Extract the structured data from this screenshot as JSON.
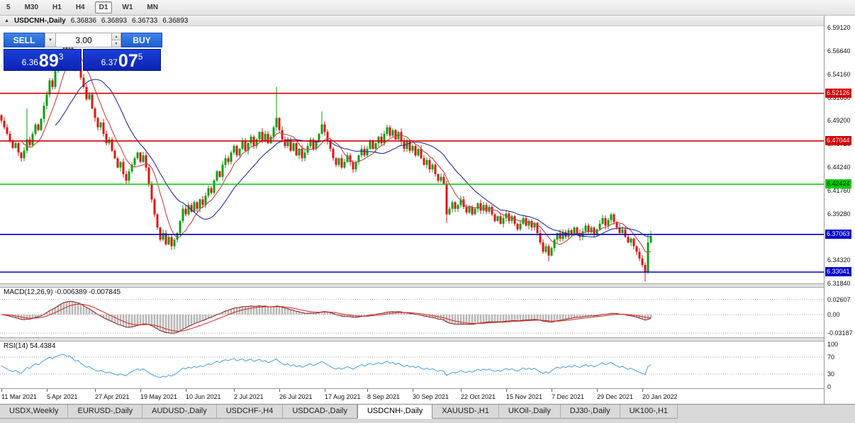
{
  "toolbar": {
    "timeframes": [
      {
        "label": "5",
        "active": false
      },
      {
        "label": "M30",
        "active": false
      },
      {
        "label": "H1",
        "active": false
      },
      {
        "label": "H4",
        "active": false
      },
      {
        "label": "D1",
        "active": true
      },
      {
        "label": "W1",
        "active": false
      },
      {
        "label": "MN",
        "active": false
      }
    ]
  },
  "chart_header": {
    "icon": "▲",
    "symbol": "USDCNH-,Daily",
    "open": "6.36836",
    "high": "6.36893",
    "low": "6.36733",
    "close": "6.36893"
  },
  "trade_panel": {
    "sell_label": "SELL",
    "buy_label": "BUY",
    "volume": "3.00",
    "dropdown_icon": "▼",
    "up_icon": "▲",
    "down_icon": "▼",
    "sell_price": {
      "small": "6.36",
      "big": "89",
      "sup": "3"
    },
    "buy_price": {
      "small": "6.37",
      "big": "07",
      "sup": "5"
    }
  },
  "price_axis": {
    "ticks": [
      "6.59120",
      "6.56640",
      "6.54160",
      "6.51680",
      "6.49200",
      "6.46720",
      "6.44240",
      "6.41760",
      "6.39280",
      "6.36800",
      "6.34320",
      "6.31840"
    ]
  },
  "hlines": [
    {
      "value": "6.52126",
      "price": 6.52126,
      "bg": "#d40000",
      "fg": "#ffffff"
    },
    {
      "value": "6.47044",
      "price": 6.47044,
      "bg": "#d40000",
      "fg": "#ffffff"
    },
    {
      "value": "6.42424",
      "price": 6.42424,
      "bg": "#00cc00",
      "fg": "#002200"
    },
    {
      "value": "6.37063",
      "price": 6.37063,
      "bg": "#0000cc",
      "fg": "#ffffff"
    },
    {
      "value": "6.33041",
      "price": 6.33041,
      "bg": "#0000cc",
      "fg": "#ffffff"
    }
  ],
  "macd_panel": {
    "label": "MACD(12,26,9) -0.006389 -0.007845",
    "axis": [
      {
        "text": "0.02607",
        "v": 0.02607
      },
      {
        "text": "0.00",
        "v": 0
      },
      {
        "text": "-0.03187",
        "v": -0.03187
      }
    ]
  },
  "rsi_panel": {
    "label": "RSI(14) 54.4384",
    "axis": [
      {
        "text": "100",
        "v": 100
      },
      {
        "text": "70",
        "v": 70
      },
      {
        "text": "30",
        "v": 30
      },
      {
        "text": "0",
        "v": 0
      }
    ]
  },
  "tabs": [
    {
      "label": "USDX,Weekly",
      "active": false
    },
    {
      "label": "EURUSD-,Daily",
      "active": false
    },
    {
      "label": "AUDUSD-,Daily",
      "active": false
    },
    {
      "label": "USDCHF-,H4",
      "active": false
    },
    {
      "label": "USDCAD-,Daily",
      "active": false
    },
    {
      "label": "USDCNH-,Daily",
      "active": true
    },
    {
      "label": "XAUUSD-,H1",
      "active": false
    },
    {
      "label": "UKOil-,Daily",
      "active": false
    },
    {
      "label": "DJ30-,Daily",
      "active": false
    },
    {
      "label": "UK100-,H1",
      "active": false
    }
  ],
  "colors": {
    "up": "#0ba012",
    "down": "#e01414",
    "ma_fast": "#cc4444",
    "ma_slow": "#26309c",
    "macd_hist": "#b8b8b8",
    "macd_main": "#8b1a1a",
    "macd_signal": "#e02020",
    "rsi": "#4a9fdf",
    "grid": "#ababab"
  },
  "chart_data": {
    "type": "candlestick",
    "symbol": "USDCNH-",
    "timeframe": "Daily",
    "current_ohlc": {
      "open": 6.36836,
      "high": 6.36893,
      "low": 6.36733,
      "close": 6.36893
    },
    "visible_price_range": [
      6.3183,
      6.5929
    ],
    "first_open": 6.498,
    "closes": [
      6.492,
      6.485,
      6.478,
      6.47,
      6.463,
      6.468,
      6.458,
      6.452,
      6.46,
      6.472,
      6.466,
      6.478,
      6.488,
      6.482,
      6.494,
      6.508,
      6.52,
      6.535,
      6.528,
      6.545,
      6.558,
      6.568,
      6.572,
      6.565,
      6.57,
      6.56,
      6.548,
      6.552,
      6.538,
      6.528,
      6.515,
      6.52,
      6.505,
      6.495,
      6.485,
      6.49,
      6.478,
      6.468,
      6.472,
      6.46,
      6.452,
      6.442,
      6.448,
      6.435,
      6.428,
      6.438,
      6.445,
      6.452,
      6.458,
      6.448,
      6.455,
      6.442,
      6.425,
      6.408,
      6.392,
      6.378,
      6.365,
      6.372,
      6.36,
      6.368,
      6.358,
      6.365,
      6.372,
      6.385,
      6.398,
      6.392,
      6.402,
      6.395,
      6.405,
      6.398,
      6.408,
      6.402,
      6.412,
      6.42,
      6.415,
      6.428,
      6.438,
      6.432,
      6.445,
      6.452,
      6.448,
      6.458,
      6.465,
      6.455,
      6.462,
      6.47,
      6.46,
      6.468,
      6.475,
      6.465,
      6.472,
      6.48,
      6.47,
      6.478,
      6.468,
      6.475,
      6.485,
      6.495,
      6.482,
      6.472,
      6.465,
      6.472,
      6.46,
      6.468,
      6.455,
      6.462,
      6.452,
      6.458,
      6.465,
      6.472,
      6.462,
      6.47,
      6.478,
      6.488,
      6.48,
      6.47,
      6.462,
      6.452,
      6.445,
      6.452,
      6.442,
      6.448,
      6.455,
      6.448,
      6.44,
      6.448,
      6.455,
      6.462,
      6.455,
      6.462,
      6.47,
      6.462,
      6.468,
      6.475,
      6.468,
      6.478,
      6.485,
      6.476,
      6.482,
      6.472,
      6.48,
      6.47,
      6.462,
      6.47,
      6.46,
      6.465,
      6.455,
      6.462,
      6.452,
      6.445,
      6.45,
      6.44,
      6.445,
      6.435,
      6.428,
      6.432,
      6.425,
      6.392,
      6.398,
      6.405,
      6.398,
      6.402,
      6.408,
      6.4,
      6.394,
      6.4,
      6.392,
      6.398,
      6.404,
      6.396,
      6.402,
      6.395,
      6.4,
      6.392,
      6.385,
      6.39,
      6.382,
      6.388,
      6.393,
      6.385,
      6.39,
      6.382,
      6.376,
      6.382,
      6.388,
      6.38,
      6.385,
      6.378,
      6.383,
      6.372,
      6.362,
      6.352,
      6.358,
      6.348,
      6.356,
      6.365,
      6.372,
      6.366,
      6.373,
      6.368,
      6.375,
      6.37,
      6.378,
      6.372,
      6.368,
      6.374,
      6.38,
      6.373,
      6.378,
      6.37,
      6.376,
      6.382,
      6.388,
      6.38,
      6.386,
      6.392,
      6.384,
      6.378,
      6.372,
      6.376,
      6.368,
      6.362,
      6.366,
      6.358,
      6.352,
      6.345,
      6.338,
      6.33,
      6.362,
      6.369
    ],
    "wick_overrides": {
      "9": {
        "high": 6.505
      },
      "22": {
        "high": 6.576
      },
      "24": {
        "high": 6.574
      },
      "97": {
        "high": 6.528
      },
      "113": {
        "high": 6.502
      },
      "157": {
        "low": 6.383
      },
      "193": {
        "low": 6.342
      },
      "227": {
        "low": 6.3205
      },
      "228": {
        "high": 6.371
      },
      "229": {
        "high": 6.3745
      }
    },
    "date_ticks": [
      {
        "label": "11 Mar 2021",
        "i": 0
      },
      {
        "label": "5 Apr 2021",
        "i": 16
      },
      {
        "label": "27 Apr 2021",
        "i": 33
      },
      {
        "label": "19 May 2021",
        "i": 49
      },
      {
        "label": "10 Jun 2021",
        "i": 65
      },
      {
        "label": "2 Jul 2021",
        "i": 82
      },
      {
        "label": "26 Jul 2021",
        "i": 98
      },
      {
        "label": "17 Aug 2021",
        "i": 114
      },
      {
        "label": "8 Sep 2021",
        "i": 129
      },
      {
        "label": "30 Sep 2021",
        "i": 145
      },
      {
        "label": "22 Oct 2021",
        "i": 162
      },
      {
        "label": "15 Nov 2021",
        "i": 178
      },
      {
        "label": "7 Dec 2021",
        "i": 194
      },
      {
        "label": "29 Dec 2021",
        "i": 210
      },
      {
        "label": "20 Jan 2022",
        "i": 226
      }
    ],
    "indicators": {
      "ma_fast_period": 8,
      "ma_slow_period": 20,
      "macd": {
        "fast": 12,
        "slow": 26,
        "signal": 9,
        "current_main": -0.006389,
        "current_signal": -0.007845,
        "scale_max": 0.02607,
        "scale_min": -0.03187
      },
      "rsi": {
        "period": 14,
        "current": 54.4384,
        "levels": [
          100,
          70,
          30,
          0
        ]
      }
    }
  }
}
